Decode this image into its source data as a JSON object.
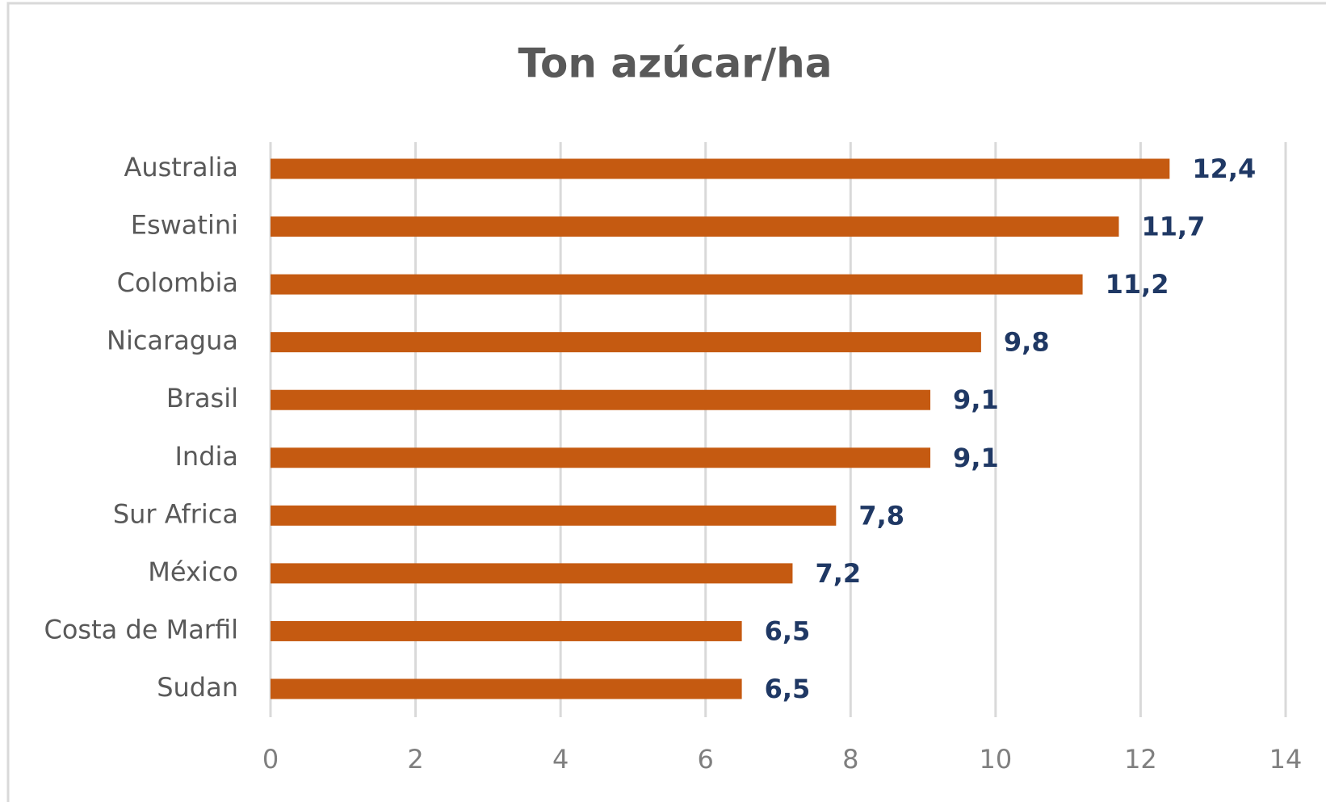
{
  "chart_data": {
    "type": "barh",
    "title": "Ton azúcar/ha",
    "categories": [
      "Australia",
      "Eswatini",
      "Colombia",
      "Nicaragua",
      "Brasil",
      "India",
      "Sur Africa",
      "México",
      "Costa de Marfil",
      "Sudan"
    ],
    "values": [
      12.4,
      11.7,
      11.2,
      9.8,
      9.1,
      9.1,
      7.8,
      7.2,
      6.5,
      6.5
    ],
    "value_labels": [
      "12,4",
      "11,7",
      "11,2",
      "9,8",
      "9,1",
      "9,1",
      "7,8",
      "7,2",
      "6,5",
      "6,5"
    ],
    "color": "#c55a11",
    "xlim": [
      0,
      14
    ],
    "xticks": [
      0,
      2,
      4,
      6,
      8,
      10,
      12,
      14
    ],
    "grid": true
  }
}
